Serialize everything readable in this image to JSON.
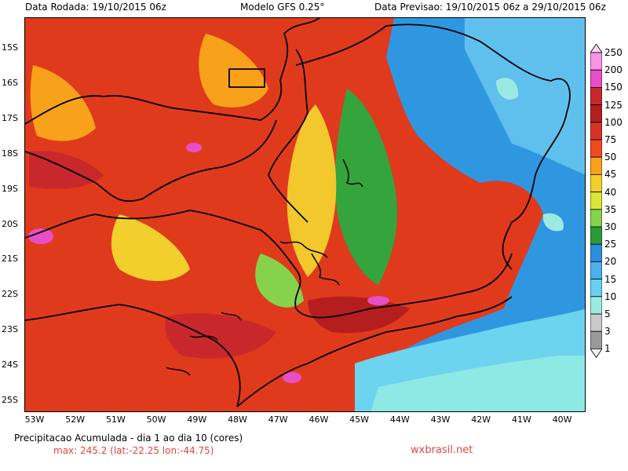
{
  "header": {
    "run_label": "Data Rodada: 19/10/2015 06z",
    "model_label": "Modelo GFS 0.25°",
    "forecast_label": "Data Previsao: 19/10/2015 06z a 29/10/2015 06z"
  },
  "map": {
    "lat_labels": [
      "15S",
      "16S",
      "17S",
      "18S",
      "19S",
      "20S",
      "21S",
      "22S",
      "23S",
      "24S",
      "25S"
    ],
    "lon_labels": [
      "53W",
      "52W",
      "51W",
      "50W",
      "49W",
      "48W",
      "47W",
      "46W",
      "45W",
      "44W",
      "43W",
      "42W",
      "41W",
      "40W"
    ]
  },
  "colorbar": {
    "labels": [
      "250",
      "200",
      "150",
      "125",
      "100",
      "75",
      "50",
      "45",
      "40",
      "35",
      "30",
      "25",
      "20",
      "15",
      "10",
      "5",
      "3",
      "1"
    ],
    "colors": {
      "c250": "#fcd2f0",
      "c200": "#f794e4",
      "c150": "#e84ec8",
      "c125": "#c8282c",
      "c100": "#b41e1e",
      "c75": "#d73226",
      "c50": "#f04a1e",
      "c45": "#f7a21a",
      "c40": "#f2cf2c",
      "c35": "#dbe63a",
      "c30": "#86d24c",
      "c25": "#2c9a38",
      "c20": "#2b8fde",
      "c15": "#4ab0ee",
      "c10": "#6ad0f2",
      "c5": "#9beae2",
      "c3": "#c9c9c9",
      "c1": "#9a9a9a",
      "low": "#f0f0f0"
    }
  },
  "footer": {
    "title": "Precipitacao Acumulada - dia 1 ao dia 10 (cores)",
    "max_label": "max: 245.2 (lat:-22.25 lon:-44.75)",
    "site": "wxbrasil.net"
  }
}
